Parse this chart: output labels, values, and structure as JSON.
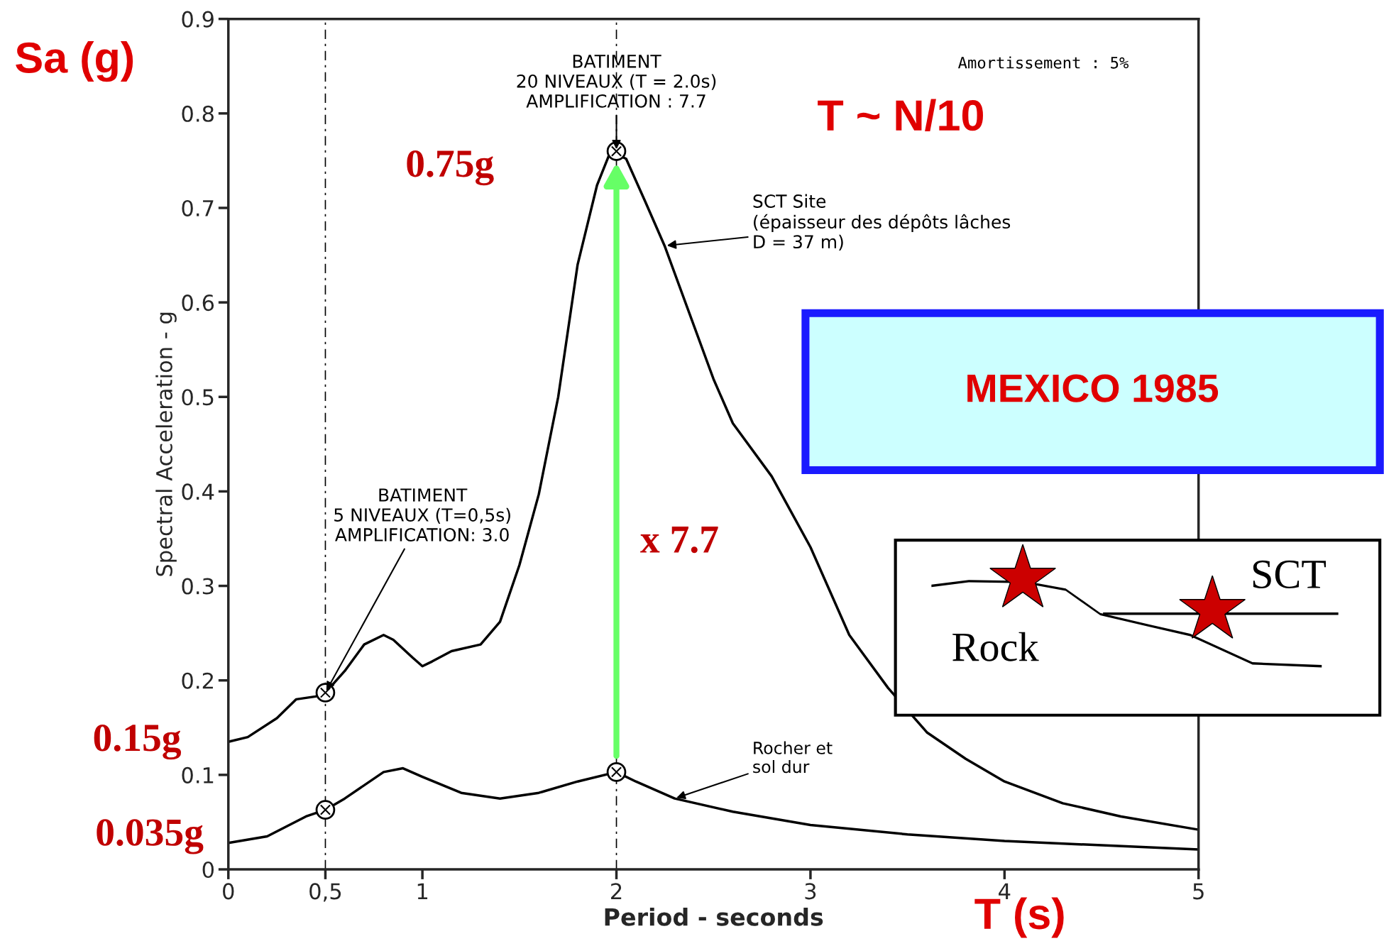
{
  "chart_data": {
    "type": "line",
    "xlabel": "Period - seconds",
    "ylabel": "Spectral Acceleration - g",
    "xlim": [
      0,
      5
    ],
    "ylim": [
      0,
      0.9
    ],
    "xticks": [
      0,
      {
        "value": 0.5,
        "label": "0,5"
      },
      1,
      2,
      3,
      4,
      5
    ],
    "yticks": [
      0,
      0.1,
      0.2,
      0.3,
      0.4,
      0.5,
      0.6,
      0.7,
      0.8,
      0.9
    ],
    "series": [
      {
        "type": "line",
        "color": "#000000",
        "marker": "none",
        "x": [
          0,
          0.1,
          0.25,
          0.35,
          0.45,
          0.5,
          0.6,
          0.7,
          0.8,
          0.85,
          0.95,
          1.0,
          1.05,
          1.15,
          1.3,
          1.4,
          1.5,
          1.6,
          1.7,
          1.8,
          1.9,
          1.97,
          2.05,
          2.15,
          2.25,
          2.4,
          2.5,
          2.6,
          2.8,
          3.0,
          3.2,
          3.4,
          3.6,
          3.8,
          4.0,
          4.3,
          4.6,
          5.0
        ],
        "values": [
          0.135,
          0.14,
          0.16,
          0.18,
          0.183,
          0.187,
          0.21,
          0.238,
          0.248,
          0.243,
          0.224,
          0.215,
          0.22,
          0.231,
          0.238,
          0.262,
          0.322,
          0.397,
          0.5,
          0.64,
          0.724,
          0.76,
          0.752,
          0.706,
          0.659,
          0.575,
          0.519,
          0.472,
          0.416,
          0.341,
          0.248,
          0.192,
          0.145,
          0.117,
          0.093,
          0.07,
          0.056,
          0.042
        ]
      },
      {
        "type": "line",
        "color": "#000000",
        "marker": "none",
        "x": [
          0,
          0.2,
          0.4,
          0.5,
          0.6,
          0.8,
          0.9,
          1.0,
          1.2,
          1.4,
          1.6,
          1.8,
          2.0,
          2.1,
          2.3,
          2.6,
          3.0,
          3.5,
          4.0,
          5.0
        ],
        "values": [
          0.028,
          0.035,
          0.056,
          0.063,
          0.075,
          0.103,
          0.107,
          0.098,
          0.081,
          0.075,
          0.081,
          0.093,
          0.103,
          0.093,
          0.075,
          0.061,
          0.047,
          0.037,
          0.03,
          0.021
        ]
      },
      {
        "type": "scatter",
        "color": "#000000",
        "marker": "circle",
        "x": [
          0.5,
          0.5,
          2.0,
          2.0
        ],
        "values": [
          0.187,
          0.063,
          0.76,
          0.103
        ]
      }
    ],
    "ref_lines": [
      {
        "axis": "x",
        "value": 0.5,
        "line_style": "dashed",
        "color": "#000000"
      },
      {
        "axis": "x",
        "value": 2,
        "line_style": "dashed",
        "color": "#000000"
      }
    ],
    "annotations": [
      {
        "text": "BATIMENT\n20 NIVEAUX (T = 2.0s)\nAMPLIFICATION : 7.7",
        "x": 2,
        "y": 0.76
      },
      {
        "text": "BATIMENT\n5 NIVEAUX (T=0,5s)\nAMPLIFICATION: 3.0",
        "x": 0.5,
        "y": 0.187
      },
      {
        "text": "SCT Site\n(épaisseur des dépôts lâches\nD = 37 m)",
        "x": 2.25,
        "y": 0.66
      },
      {
        "text": "Rocher et\nsol dur",
        "x": 2.3,
        "y": 0.075
      },
      "Amortissement : 5%",
      "Sa (g)",
      "T ~ N/10",
      "0.75g",
      "0.15g",
      "0.035g",
      "x 7.7",
      "T (s)",
      "MEXICO 1985",
      "Rock",
      "SCT"
    ]
  }
}
